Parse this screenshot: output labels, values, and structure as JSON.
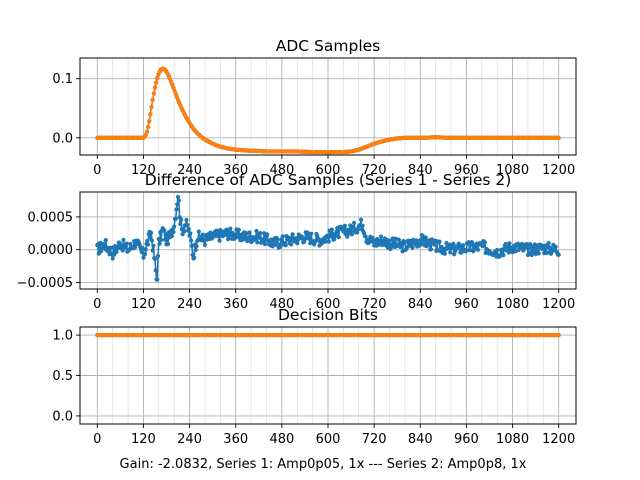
{
  "caption": "Gain: -2.0832, Series 1: Amp0p05, 1x --- Series 2: Amp0p8, 1x",
  "colors": {
    "series1": "#1f77b4",
    "series2": "#ff7f0e"
  },
  "chart_data": [
    {
      "type": "scatter",
      "title": "ADC Samples",
      "xlim": [
        -45,
        1245
      ],
      "ylim": [
        -0.029,
        0.135
      ],
      "xticks": [
        0,
        120,
        240,
        360,
        480,
        600,
        720,
        840,
        960,
        1080,
        1200
      ],
      "yticks": [
        0.0,
        0.1
      ],
      "ytick_labels": [
        "0.0",
        "0.1"
      ],
      "grid": true,
      "series": [
        {
          "color": "#1f77b4",
          "marker": "dot",
          "x": [
            0,
            60,
            110,
            120,
            125,
            130,
            135,
            140,
            145,
            150,
            155,
            160,
            165,
            170,
            175,
            180,
            185,
            190,
            195,
            200,
            210,
            220,
            230,
            240,
            250,
            260,
            270,
            280,
            300,
            320,
            340,
            360,
            380,
            400,
            420,
            440,
            480,
            520,
            560,
            600,
            640,
            660,
            680,
            700,
            720,
            740,
            760,
            780,
            800,
            840,
            880,
            920,
            960,
            1000,
            1040,
            1080,
            1120,
            1160,
            1200
          ],
          "y": [
            0.0,
            0.0,
            0.0,
            0.0,
            0.003,
            0.012,
            0.028,
            0.048,
            0.068,
            0.085,
            0.099,
            0.109,
            0.115,
            0.117,
            0.116,
            0.112,
            0.106,
            0.098,
            0.09,
            0.081,
            0.064,
            0.049,
            0.036,
            0.025,
            0.015,
            0.008,
            0.002,
            -0.003,
            -0.01,
            -0.015,
            -0.018,
            -0.02,
            -0.021,
            -0.022,
            -0.022,
            -0.023,
            -0.023,
            -0.023,
            -0.024,
            -0.024,
            -0.024,
            -0.023,
            -0.02,
            -0.015,
            -0.01,
            -0.006,
            -0.003,
            -0.001,
            0.0,
            0.0,
            0.001,
            0.0,
            0.0,
            0.0,
            0.0,
            0.0,
            0.0,
            0.0,
            0.0
          ]
        },
        {
          "color": "#ff7f0e",
          "marker": "dot",
          "x": [
            0,
            60,
            110,
            120,
            125,
            130,
            135,
            140,
            145,
            150,
            155,
            160,
            165,
            170,
            175,
            180,
            185,
            190,
            195,
            200,
            210,
            220,
            230,
            240,
            250,
            260,
            270,
            280,
            300,
            320,
            340,
            360,
            380,
            400,
            420,
            440,
            480,
            520,
            560,
            600,
            640,
            660,
            680,
            700,
            720,
            740,
            760,
            780,
            800,
            840,
            880,
            920,
            960,
            1000,
            1040,
            1080,
            1120,
            1160,
            1200
          ],
          "y": [
            0.0,
            0.0,
            0.0,
            0.0,
            0.003,
            0.012,
            0.028,
            0.048,
            0.068,
            0.085,
            0.099,
            0.109,
            0.115,
            0.117,
            0.116,
            0.112,
            0.106,
            0.098,
            0.09,
            0.081,
            0.064,
            0.049,
            0.036,
            0.025,
            0.015,
            0.008,
            0.002,
            -0.003,
            -0.01,
            -0.015,
            -0.018,
            -0.02,
            -0.021,
            -0.022,
            -0.022,
            -0.023,
            -0.023,
            -0.023,
            -0.024,
            -0.024,
            -0.024,
            -0.023,
            -0.02,
            -0.015,
            -0.01,
            -0.006,
            -0.003,
            -0.001,
            0.0,
            0.0,
            0.001,
            0.0,
            0.0,
            0.0,
            0.0,
            0.0,
            0.0,
            0.0,
            0.0
          ]
        }
      ]
    },
    {
      "type": "line",
      "title": "Difference of ADC Samples (Series 1 - Series 2)",
      "xlim": [
        -45,
        1245
      ],
      "ylim": [
        -0.0006,
        0.00088
      ],
      "xticks": [
        0,
        120,
        240,
        360,
        480,
        600,
        720,
        840,
        960,
        1080,
        1200
      ],
      "yticks": [
        -0.0005,
        0.0,
        0.0005
      ],
      "ytick_labels": [
        "−0.0005",
        "0.0000",
        "0.0005"
      ],
      "grid": true,
      "series": [
        {
          "color": "#1f77b4",
          "marker": "dot",
          "x": [
            0,
            20,
            40,
            60,
            80,
            100,
            120,
            130,
            140,
            150,
            155,
            160,
            170,
            180,
            190,
            200,
            205,
            210,
            215,
            220,
            230,
            240,
            250,
            260,
            280,
            300,
            340,
            380,
            420,
            460,
            500,
            540,
            580,
            620,
            660,
            690,
            700,
            720,
            740,
            760,
            800,
            840,
            880,
            920,
            960,
            1000,
            1040,
            1080,
            1120,
            1160,
            1200
          ],
          "y": [
            0.0,
            8e-05,
            -5e-05,
            0.0001,
            0.0,
            0.00012,
            -8e-05,
            0.0001,
            0.00025,
            -0.0002,
            -0.0005,
            0.0001,
            0.0003,
            0.00015,
            0.0002,
            0.0004,
            0.0006,
            0.00085,
            0.0005,
            0.0003,
            0.0004,
            0.00025,
            -0.0001,
            0.0002,
            0.00015,
            0.0002,
            0.00025,
            0.0002,
            0.0002,
            0.0001,
            0.00015,
            0.0002,
            0.00015,
            0.00025,
            0.0003,
            0.0004,
            0.0002,
            0.0001,
            0.00015,
            0.0001,
            5e-05,
            0.00015,
            5e-05,
            0.0,
            3e-05,
            5e-05,
            -3e-05,
            5e-05,
            0.0,
            3e-05,
            0.0
          ]
        }
      ]
    },
    {
      "type": "scatter",
      "title": "Decision Bits",
      "xlim": [
        -45,
        1245
      ],
      "ylim": [
        -0.1,
        1.1
      ],
      "xticks": [
        0,
        120,
        240,
        360,
        480,
        600,
        720,
        840,
        960,
        1080,
        1200
      ],
      "yticks": [
        0.0,
        0.5,
        1.0
      ],
      "ytick_labels": [
        "0.0",
        "0.5",
        "1.0"
      ],
      "grid": true,
      "series": [
        {
          "color": "#1f77b4",
          "marker": "dot",
          "x": [
            0,
            1200
          ],
          "y": [
            1,
            1
          ]
        },
        {
          "color": "#ff7f0e",
          "marker": "dot",
          "x": [
            0,
            1200
          ],
          "y": [
            1,
            1
          ]
        }
      ]
    }
  ]
}
